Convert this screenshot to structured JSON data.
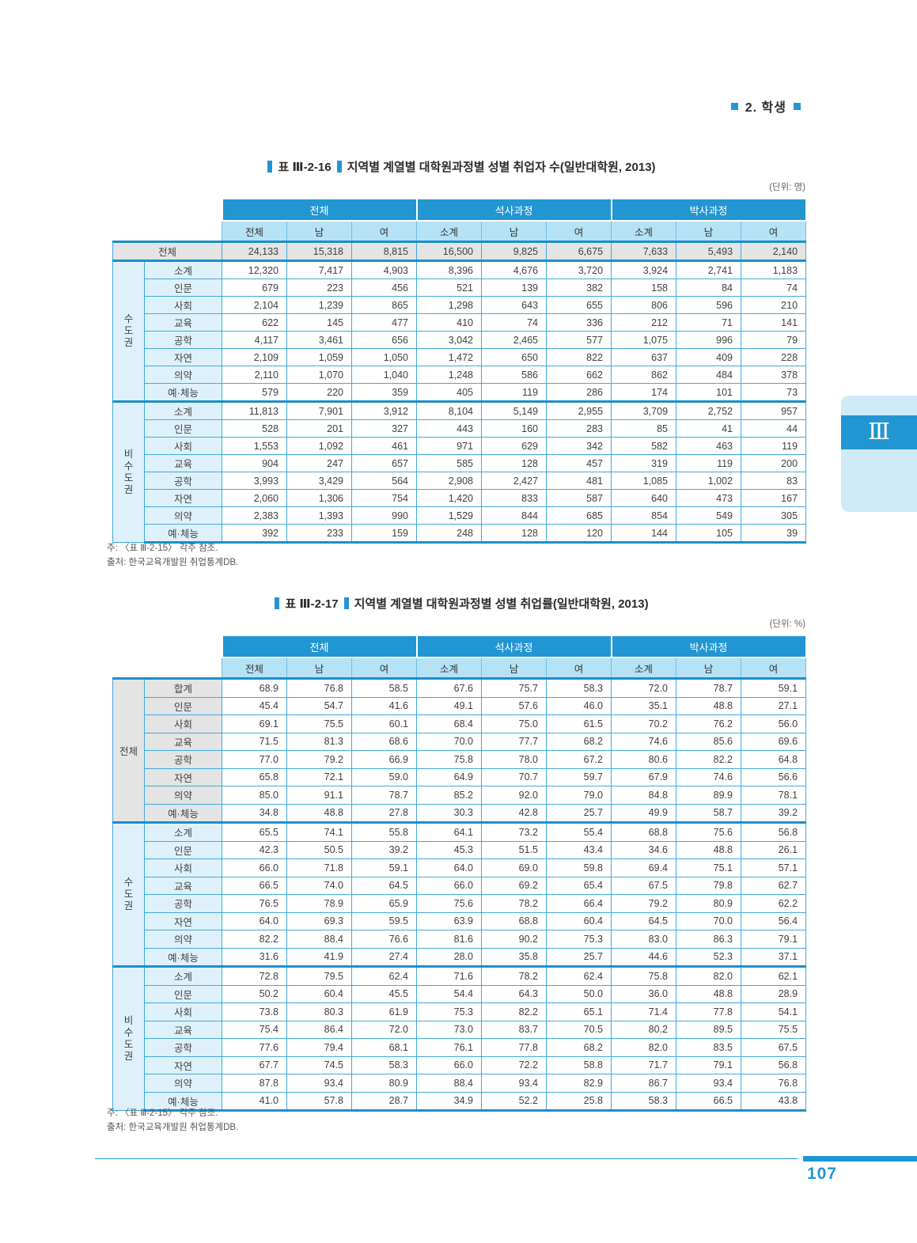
{
  "page_header": {
    "label": "2. 학생"
  },
  "page_number": "107",
  "side_tab": {
    "label": "Ⅲ"
  },
  "colors": {
    "accent_blue": "#2196d3",
    "subheader_blue": "#b5e2f5",
    "label_blue": "#def1fb",
    "tab_blue": "#cfeaf7",
    "gray_row": "#e4e4e4",
    "border_blue": "#41a9dc",
    "thick_border_blue": "#1b8fc7"
  },
  "tables": [
    {
      "prefix": "표  Ⅲ-2-16",
      "title": "지역별 계열별 대학원과정별 성별 취업자 수(일반대학원, 2013)",
      "unit": "(단위: 명)",
      "groups": [
        "전체",
        "석사과정",
        "박사과정"
      ],
      "subheaders": [
        "전체",
        "남",
        "여",
        "소계",
        "남",
        "여",
        "소계",
        "남",
        "여"
      ],
      "total_row": {
        "label": "전체",
        "values": [
          "24,133",
          "15,318",
          "8,815",
          "16,500",
          "9,825",
          "6,675",
          "7,633",
          "5,493",
          "2,140"
        ]
      },
      "sections": [
        {
          "label": "수도권",
          "vertical": true,
          "shade": "blue",
          "rows": [
            {
              "label": "소계",
              "values": [
                "12,320",
                "7,417",
                "4,903",
                "8,396",
                "4,676",
                "3,720",
                "3,924",
                "2,741",
                "1,183"
              ]
            },
            {
              "label": "인문",
              "values": [
                "679",
                "223",
                "456",
                "521",
                "139",
                "382",
                "158",
                "84",
                "74"
              ]
            },
            {
              "label": "사회",
              "values": [
                "2,104",
                "1,239",
                "865",
                "1,298",
                "643",
                "655",
                "806",
                "596",
                "210"
              ]
            },
            {
              "label": "교육",
              "values": [
                "622",
                "145",
                "477",
                "410",
                "74",
                "336",
                "212",
                "71",
                "141"
              ]
            },
            {
              "label": "공학",
              "values": [
                "4,117",
                "3,461",
                "656",
                "3,042",
                "2,465",
                "577",
                "1,075",
                "996",
                "79"
              ]
            },
            {
              "label": "자연",
              "values": [
                "2,109",
                "1,059",
                "1,050",
                "1,472",
                "650",
                "822",
                "637",
                "409",
                "228"
              ]
            },
            {
              "label": "의약",
              "values": [
                "2,110",
                "1,070",
                "1,040",
                "1,248",
                "586",
                "662",
                "862",
                "484",
                "378"
              ]
            },
            {
              "label": "예·체능",
              "values": [
                "579",
                "220",
                "359",
                "405",
                "119",
                "286",
                "174",
                "101",
                "73"
              ]
            }
          ]
        },
        {
          "label": "비수도권",
          "vertical": true,
          "shade": "blue",
          "rows": [
            {
              "label": "소계",
              "values": [
                "11,813",
                "7,901",
                "3,912",
                "8,104",
                "5,149",
                "2,955",
                "3,709",
                "2,752",
                "957"
              ]
            },
            {
              "label": "인문",
              "values": [
                "528",
                "201",
                "327",
                "443",
                "160",
                "283",
                "85",
                "41",
                "44"
              ]
            },
            {
              "label": "사회",
              "values": [
                "1,553",
                "1,092",
                "461",
                "971",
                "629",
                "342",
                "582",
                "463",
                "119"
              ]
            },
            {
              "label": "교육",
              "values": [
                "904",
                "247",
                "657",
                "585",
                "128",
                "457",
                "319",
                "119",
                "200"
              ]
            },
            {
              "label": "공학",
              "values": [
                "3,993",
                "3,429",
                "564",
                "2,908",
                "2,427",
                "481",
                "1,085",
                "1,002",
                "83"
              ]
            },
            {
              "label": "자연",
              "values": [
                "2,060",
                "1,306",
                "754",
                "1,420",
                "833",
                "587",
                "640",
                "473",
                "167"
              ]
            },
            {
              "label": "의약",
              "values": [
                "2,383",
                "1,393",
                "990",
                "1,529",
                "844",
                "685",
                "854",
                "549",
                "305"
              ]
            },
            {
              "label": "예·체능",
              "values": [
                "392",
                "233",
                "159",
                "248",
                "128",
                "120",
                "144",
                "105",
                "39"
              ]
            }
          ]
        }
      ],
      "notes": [
        "주: 〈표  Ⅲ-2-15〉 각주 참조.",
        "출처: 한국교육개발원 취업통계DB."
      ]
    },
    {
      "prefix": "표  Ⅲ-2-17",
      "title": "지역별 계열별 대학원과정별 성별 취업률(일반대학원, 2013)",
      "unit": "(단위: %)",
      "groups": [
        "전체",
        "석사과정",
        "박사과정"
      ],
      "subheaders": [
        "전체",
        "남",
        "여",
        "소계",
        "남",
        "여",
        "소계",
        "남",
        "여"
      ],
      "sections": [
        {
          "label": "전체",
          "vertical": false,
          "shade": "gray",
          "rows": [
            {
              "label": "합계",
              "values": [
                "68.9",
                "76.8",
                "58.5",
                "67.6",
                "75.7",
                "58.3",
                "72.0",
                "78.7",
                "59.1"
              ]
            },
            {
              "label": "인문",
              "values": [
                "45.4",
                "54.7",
                "41.6",
                "49.1",
                "57.6",
                "46.0",
                "35.1",
                "48.8",
                "27.1"
              ]
            },
            {
              "label": "사회",
              "values": [
                "69.1",
                "75.5",
                "60.1",
                "68.4",
                "75.0",
                "61.5",
                "70.2",
                "76.2",
                "56.0"
              ]
            },
            {
              "label": "교육",
              "values": [
                "71.5",
                "81.3",
                "68.6",
                "70.0",
                "77.7",
                "68.2",
                "74.6",
                "85.6",
                "69.6"
              ]
            },
            {
              "label": "공학",
              "values": [
                "77.0",
                "79.2",
                "66.9",
                "75.8",
                "78.0",
                "67.2",
                "80.6",
                "82.2",
                "64.8"
              ]
            },
            {
              "label": "자연",
              "values": [
                "65.8",
                "72.1",
                "59.0",
                "64.9",
                "70.7",
                "59.7",
                "67.9",
                "74.6",
                "56.6"
              ]
            },
            {
              "label": "의약",
              "values": [
                "85.0",
                "91.1",
                "78.7",
                "85.2",
                "92.0",
                "79.0",
                "84.8",
                "89.9",
                "78.1"
              ]
            },
            {
              "label": "예·체능",
              "values": [
                "34.8",
                "48.8",
                "27.8",
                "30.3",
                "42.8",
                "25.7",
                "49.9",
                "58.7",
                "39.2"
              ]
            }
          ]
        },
        {
          "label": "수도권",
          "vertical": true,
          "shade": "blue",
          "rows": [
            {
              "label": "소계",
              "values": [
                "65.5",
                "74.1",
                "55.8",
                "64.1",
                "73.2",
                "55.4",
                "68.8",
                "75.6",
                "56.8"
              ]
            },
            {
              "label": "인문",
              "values": [
                "42.3",
                "50.5",
                "39.2",
                "45.3",
                "51.5",
                "43.4",
                "34.6",
                "48.8",
                "26.1"
              ]
            },
            {
              "label": "사회",
              "values": [
                "66.0",
                "71.8",
                "59.1",
                "64.0",
                "69.0",
                "59.8",
                "69.4",
                "75.1",
                "57.1"
              ]
            },
            {
              "label": "교육",
              "values": [
                "66.5",
                "74.0",
                "64.5",
                "66.0",
                "69.2",
                "65.4",
                "67.5",
                "79.8",
                "62.7"
              ]
            },
            {
              "label": "공학",
              "values": [
                "76.5",
                "78.9",
                "65.9",
                "75.6",
                "78.2",
                "66.4",
                "79.2",
                "80.9",
                "62.2"
              ]
            },
            {
              "label": "자연",
              "values": [
                "64.0",
                "69.3",
                "59.5",
                "63.9",
                "68.8",
                "60.4",
                "64.5",
                "70.0",
                "56.4"
              ]
            },
            {
              "label": "의약",
              "values": [
                "82.2",
                "88.4",
                "76.6",
                "81.6",
                "90.2",
                "75.3",
                "83.0",
                "86.3",
                "79.1"
              ]
            },
            {
              "label": "예·체능",
              "values": [
                "31.6",
                "41.9",
                "27.4",
                "28.0",
                "35.8",
                "25.7",
                "44.6",
                "52.3",
                "37.1"
              ]
            }
          ]
        },
        {
          "label": "비수도권",
          "vertical": true,
          "shade": "blue",
          "rows": [
            {
              "label": "소계",
              "values": [
                "72.8",
                "79.5",
                "62.4",
                "71.6",
                "78.2",
                "62.4",
                "75.8",
                "82.0",
                "62.1"
              ]
            },
            {
              "label": "인문",
              "values": [
                "50.2",
                "60.4",
                "45.5",
                "54.4",
                "64.3",
                "50.0",
                "36.0",
                "48.8",
                "28.9"
              ]
            },
            {
              "label": "사회",
              "values": [
                "73.8",
                "80.3",
                "61.9",
                "75.3",
                "82.2",
                "65.1",
                "71.4",
                "77.8",
                "54.1"
              ]
            },
            {
              "label": "교육",
              "values": [
                "75.4",
                "86.4",
                "72.0",
                "73.0",
                "83.7",
                "70.5",
                "80.2",
                "89.5",
                "75.5"
              ]
            },
            {
              "label": "공학",
              "values": [
                "77.6",
                "79.4",
                "68.1",
                "76.1",
                "77.8",
                "68.2",
                "82.0",
                "83.5",
                "67.5"
              ]
            },
            {
              "label": "자연",
              "values": [
                "67.7",
                "74.5",
                "58.3",
                "66.0",
                "72.2",
                "58.8",
                "71.7",
                "79.1",
                "56.8"
              ]
            },
            {
              "label": "의약",
              "values": [
                "87.8",
                "93.4",
                "80.9",
                "88.4",
                "93.4",
                "82.9",
                "86.7",
                "93.4",
                "76.8"
              ]
            },
            {
              "label": "예·체능",
              "values": [
                "41.0",
                "57.8",
                "28.7",
                "34.9",
                "52.2",
                "25.8",
                "58.3",
                "66.5",
                "43.8"
              ]
            }
          ]
        }
      ],
      "notes": [
        "주: 〈표  Ⅲ-2-15〉 각주 참조.",
        "출처: 한국교육개발원 취업통계DB."
      ]
    }
  ]
}
